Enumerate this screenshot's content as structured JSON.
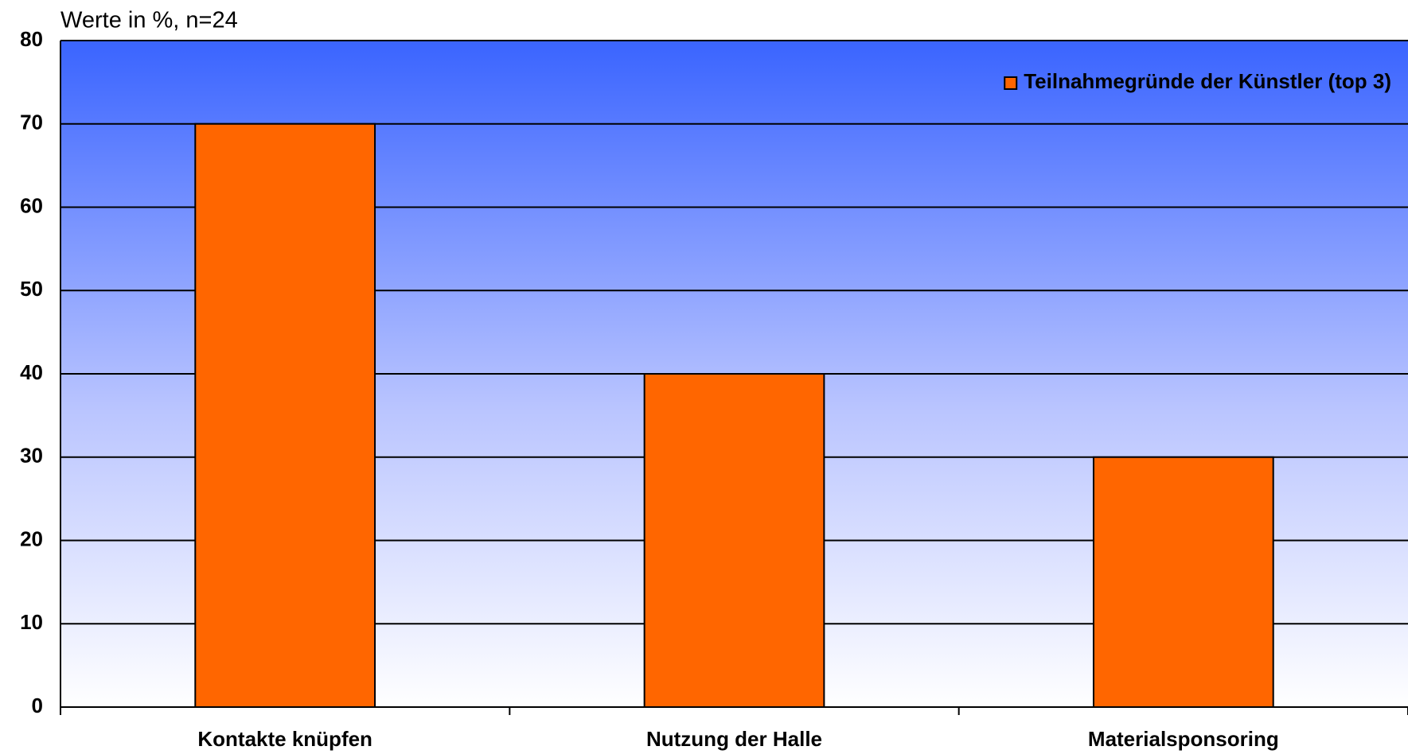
{
  "chart_data": {
    "type": "bar",
    "title": "Werte in %, n=24",
    "categories": [
      "Kontakte knüpfen",
      "Nutzung der Halle",
      "Materialsponsoring"
    ],
    "series": [
      {
        "name": "Teilnahmegründe der Künstler (top 3)",
        "color": "#ff6600",
        "values": [
          70,
          40,
          30
        ]
      }
    ],
    "ylim": [
      0,
      80
    ],
    "yticks": [
      0,
      10,
      20,
      30,
      40,
      50,
      60,
      70,
      80
    ],
    "grid": true,
    "legend": "top-right"
  }
}
